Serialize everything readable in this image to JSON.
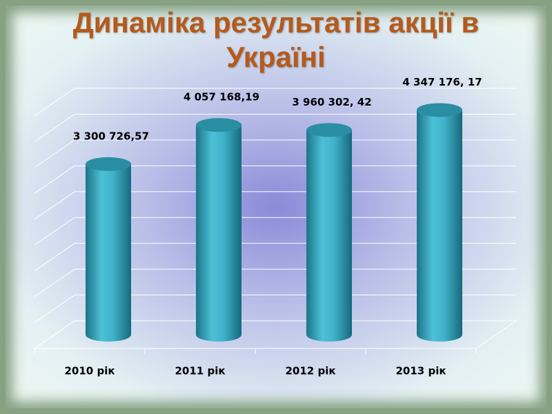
{
  "chart_data": {
    "type": "bar",
    "title": "Динаміка результатів акції в Україні",
    "categories": [
      "2010 рік",
      "2011 рік",
      "2012 рік",
      "2013 рік"
    ],
    "values": [
      3300726.57,
      4057168.19,
      3960302.42,
      4347176.17
    ],
    "value_labels": [
      "3 300 726,57",
      "4 057 168,19",
      "3 960 302, 42",
      "4 347 176, 17"
    ],
    "color": "#2fa3bb",
    "ylim": [
      0,
      4500000
    ],
    "yticks": [
      0,
      500000,
      1000000,
      1500000,
      2000000,
      2500000,
      3000000,
      3500000,
      4000000,
      4500000
    ],
    "grid": true
  }
}
